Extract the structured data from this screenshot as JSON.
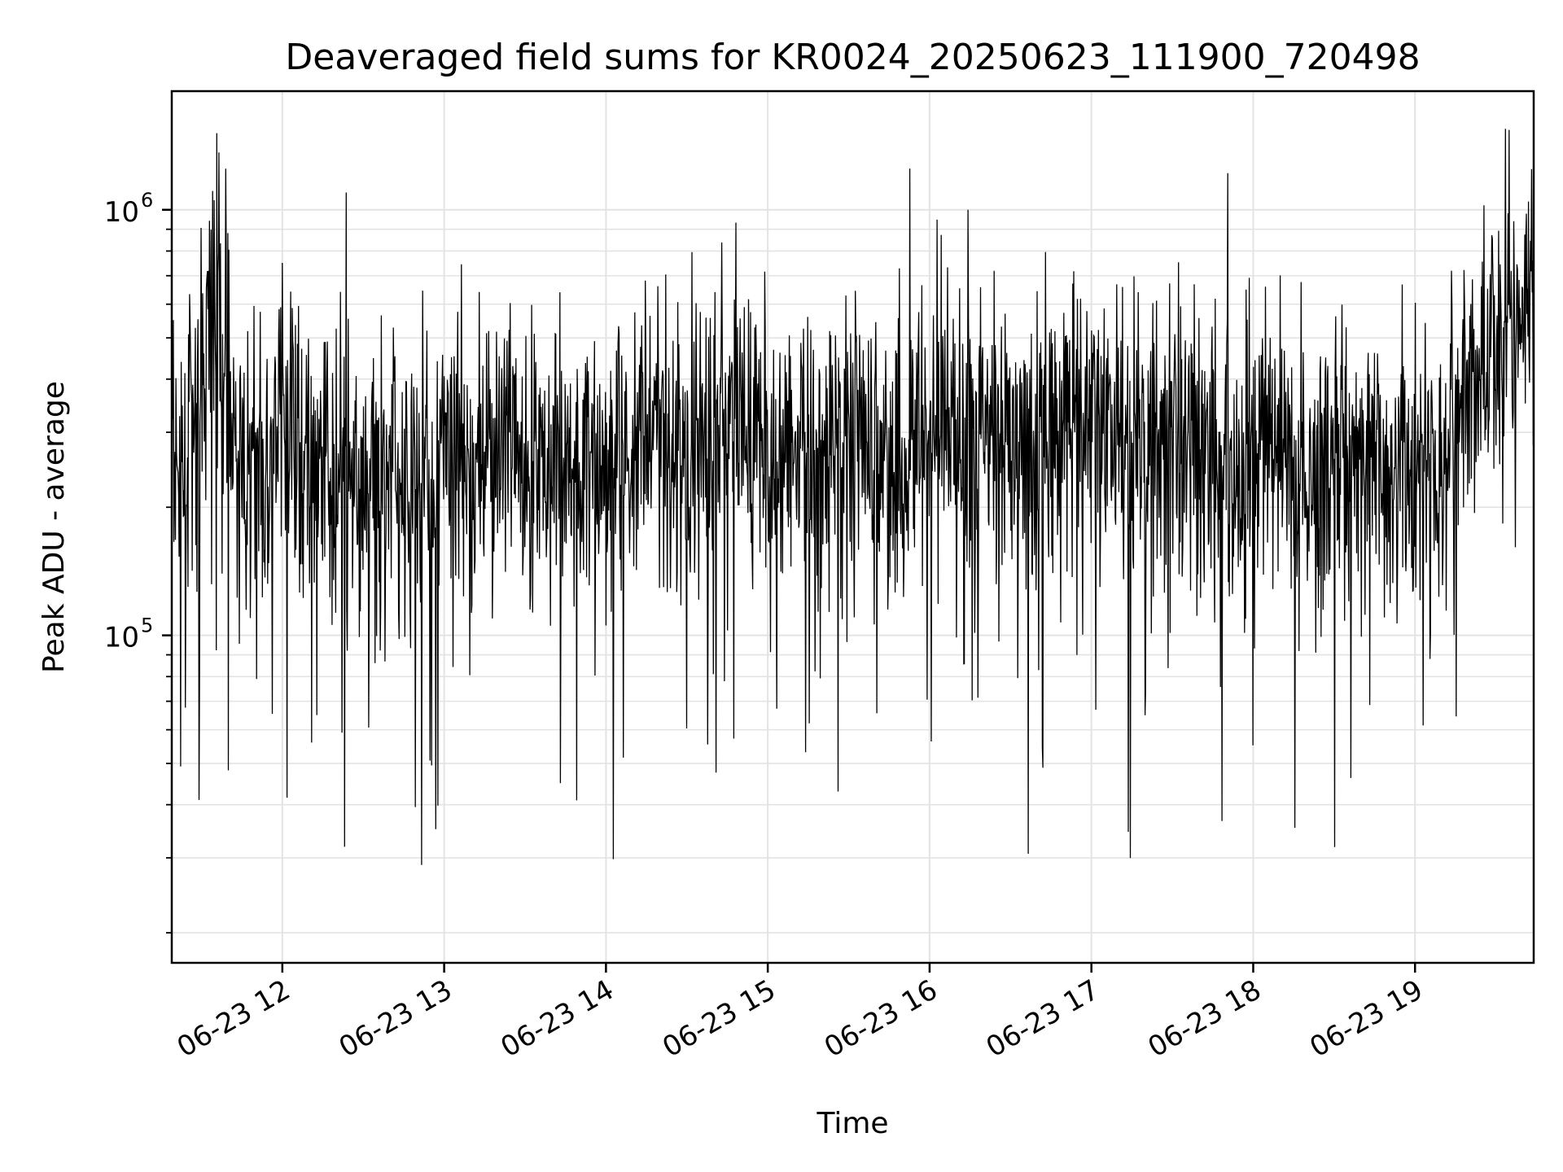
{
  "chart_data": {
    "type": "line",
    "title": "Deaveraged field sums for KR0024_20250623_111900_720498",
    "xlabel": "Time",
    "ylabel": "Peak ADU - average",
    "yscale": "log",
    "ylim": [
      17000,
      1900000
    ],
    "xlim": [
      "2025-06-23 11:19",
      "2025-06-23 19:44"
    ],
    "x_ticks": [
      {
        "time": "2025-06-23 12:00",
        "label": "06-23 12"
      },
      {
        "time": "2025-06-23 13:00",
        "label": "06-23 13"
      },
      {
        "time": "2025-06-23 14:00",
        "label": "06-23 14"
      },
      {
        "time": "2025-06-23 15:00",
        "label": "06-23 15"
      },
      {
        "time": "2025-06-23 16:00",
        "label": "06-23 16"
      },
      {
        "time": "2025-06-23 17:00",
        "label": "06-23 17"
      },
      {
        "time": "2025-06-23 18:00",
        "label": "06-23 18"
      },
      {
        "time": "2025-06-23 19:00",
        "label": "06-23 19"
      }
    ],
    "y_ticks": [
      {
        "value": 100000,
        "label": "10",
        "exp": "5"
      },
      {
        "value": 1000000,
        "label": "10",
        "exp": "6"
      }
    ],
    "grid": true,
    "line_color": "#000000",
    "series": [
      {
        "x": [
          "2025-06-23 11:19",
          "2025-06-23 11:27",
          "2025-06-23 11:35",
          "2025-06-23 11:43",
          "2025-06-23 11:51",
          "2025-06-23 11:59",
          "2025-06-23 12:07",
          "2025-06-23 12:15",
          "2025-06-23 12:23",
          "2025-06-23 12:31",
          "2025-06-23 12:39",
          "2025-06-23 12:47",
          "2025-06-23 12:55",
          "2025-06-23 13:03",
          "2025-06-23 13:11",
          "2025-06-23 13:19",
          "2025-06-23 13:27",
          "2025-06-23 13:35",
          "2025-06-23 13:43",
          "2025-06-23 13:51",
          "2025-06-23 13:59",
          "2025-06-23 14:07",
          "2025-06-23 14:15",
          "2025-06-23 14:23",
          "2025-06-23 14:31",
          "2025-06-23 14:39",
          "2025-06-23 14:47",
          "2025-06-23 14:55",
          "2025-06-23 15:03",
          "2025-06-23 15:11",
          "2025-06-23 15:19",
          "2025-06-23 15:27",
          "2025-06-23 15:35",
          "2025-06-23 15:43",
          "2025-06-23 15:51",
          "2025-06-23 15:59",
          "2025-06-23 16:07",
          "2025-06-23 16:15",
          "2025-06-23 16:23",
          "2025-06-23 16:31",
          "2025-06-23 16:39",
          "2025-06-23 16:47",
          "2025-06-23 16:55",
          "2025-06-23 17:03",
          "2025-06-23 17:11",
          "2025-06-23 17:19",
          "2025-06-23 17:27",
          "2025-06-23 17:35",
          "2025-06-23 17:43",
          "2025-06-23 17:51",
          "2025-06-23 17:59",
          "2025-06-23 18:07",
          "2025-06-23 18:15",
          "2025-06-23 18:23",
          "2025-06-23 18:31",
          "2025-06-23 18:39",
          "2025-06-23 18:47",
          "2025-06-23 18:55",
          "2025-06-23 19:03",
          "2025-06-23 19:11",
          "2025-06-23 19:19",
          "2025-06-23 19:27",
          "2025-06-23 19:35",
          "2025-06-23 19:43"
        ],
        "values": [
          230000,
          270000,
          640000,
          260000,
          240000,
          250000,
          280000,
          260000,
          210000,
          240000,
          230000,
          200000,
          210000,
          270000,
          240000,
          290000,
          250000,
          280000,
          230000,
          260000,
          240000,
          270000,
          280000,
          300000,
          260000,
          310000,
          330000,
          280000,
          250000,
          270000,
          260000,
          300000,
          310000,
          290000,
          280000,
          270000,
          300000,
          320000,
          300000,
          280000,
          270000,
          310000,
          300000,
          290000,
          280000,
          270000,
          300000,
          310000,
          260000,
          250000,
          280000,
          270000,
          260000,
          250000,
          270000,
          260000,
          250000,
          240000,
          250000,
          230000,
          480000,
          450000,
          560000,
          620000
        ]
      }
    ]
  }
}
